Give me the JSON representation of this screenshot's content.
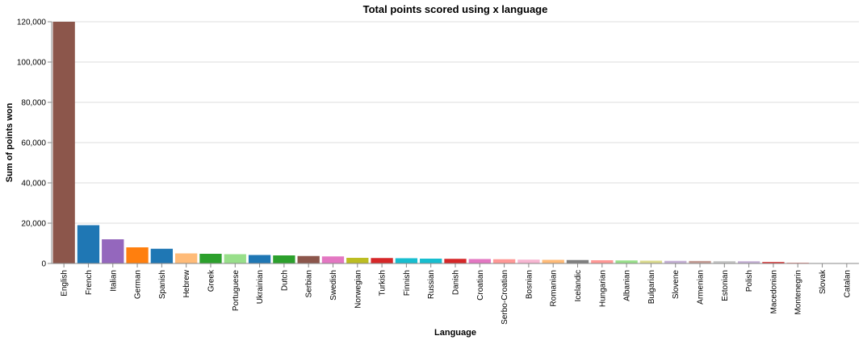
{
  "chart_data": {
    "type": "bar",
    "title": "Total points scored using x language",
    "xlabel": "Language",
    "ylabel": "Sum of points won",
    "ylim": [
      0,
      120000
    ],
    "yticks": [
      0,
      20000,
      40000,
      60000,
      80000,
      100000,
      120000
    ],
    "ytick_labels": [
      "0",
      "20,000",
      "40,000",
      "60,000",
      "80,000",
      "100,000",
      "120,000"
    ],
    "grid": true,
    "categories": [
      "English",
      "French",
      "Italian",
      "German",
      "Spanish",
      "Hebrew",
      "Greek",
      "Portuguese",
      "Ukrainian",
      "Dutch",
      "Serbian",
      "Swedish",
      "Norwegian",
      "Turkish",
      "Finnish",
      "Russian",
      "Danish",
      "Croatian",
      "Serbo-Croatian",
      "Bosnian",
      "Romanian",
      "Icelandic",
      "Hungarian",
      "Albanian",
      "Bulgarian",
      "Slovene",
      "Armenian",
      "Estonian",
      "Polish",
      "Macedonian",
      "Montenegrin",
      "Slovak",
      "Catalan"
    ],
    "values": [
      120000,
      19000,
      12000,
      8000,
      7300,
      5000,
      4800,
      4600,
      4200,
      4000,
      3700,
      3500,
      2800,
      2700,
      2600,
      2400,
      2300,
      2200,
      2100,
      1900,
      1800,
      1700,
      1600,
      1500,
      1400,
      1300,
      1250,
      1150,
      1100,
      700,
      400,
      200,
      100
    ],
    "colors": [
      "#8c564b",
      "#1f77b4",
      "#9467bd",
      "#ff7f0e",
      "#1f77b4",
      "#ffbb78",
      "#2ca02c",
      "#98df8a",
      "#1f77b4",
      "#2ca02c",
      "#8c564b",
      "#e377c2",
      "#bcbd22",
      "#d62728",
      "#17becf",
      "#17becf",
      "#d62728",
      "#e377c2",
      "#ff9896",
      "#f7b6d2",
      "#ffbb78",
      "#7f7f7f",
      "#ff9896",
      "#98df8a",
      "#dbdb8d",
      "#c5b0d5",
      "#c49c94",
      "#c7c7c7",
      "#c5b0d5",
      "#d62728",
      "#ff9896",
      "#c49c94",
      "#dbdb8d"
    ]
  }
}
